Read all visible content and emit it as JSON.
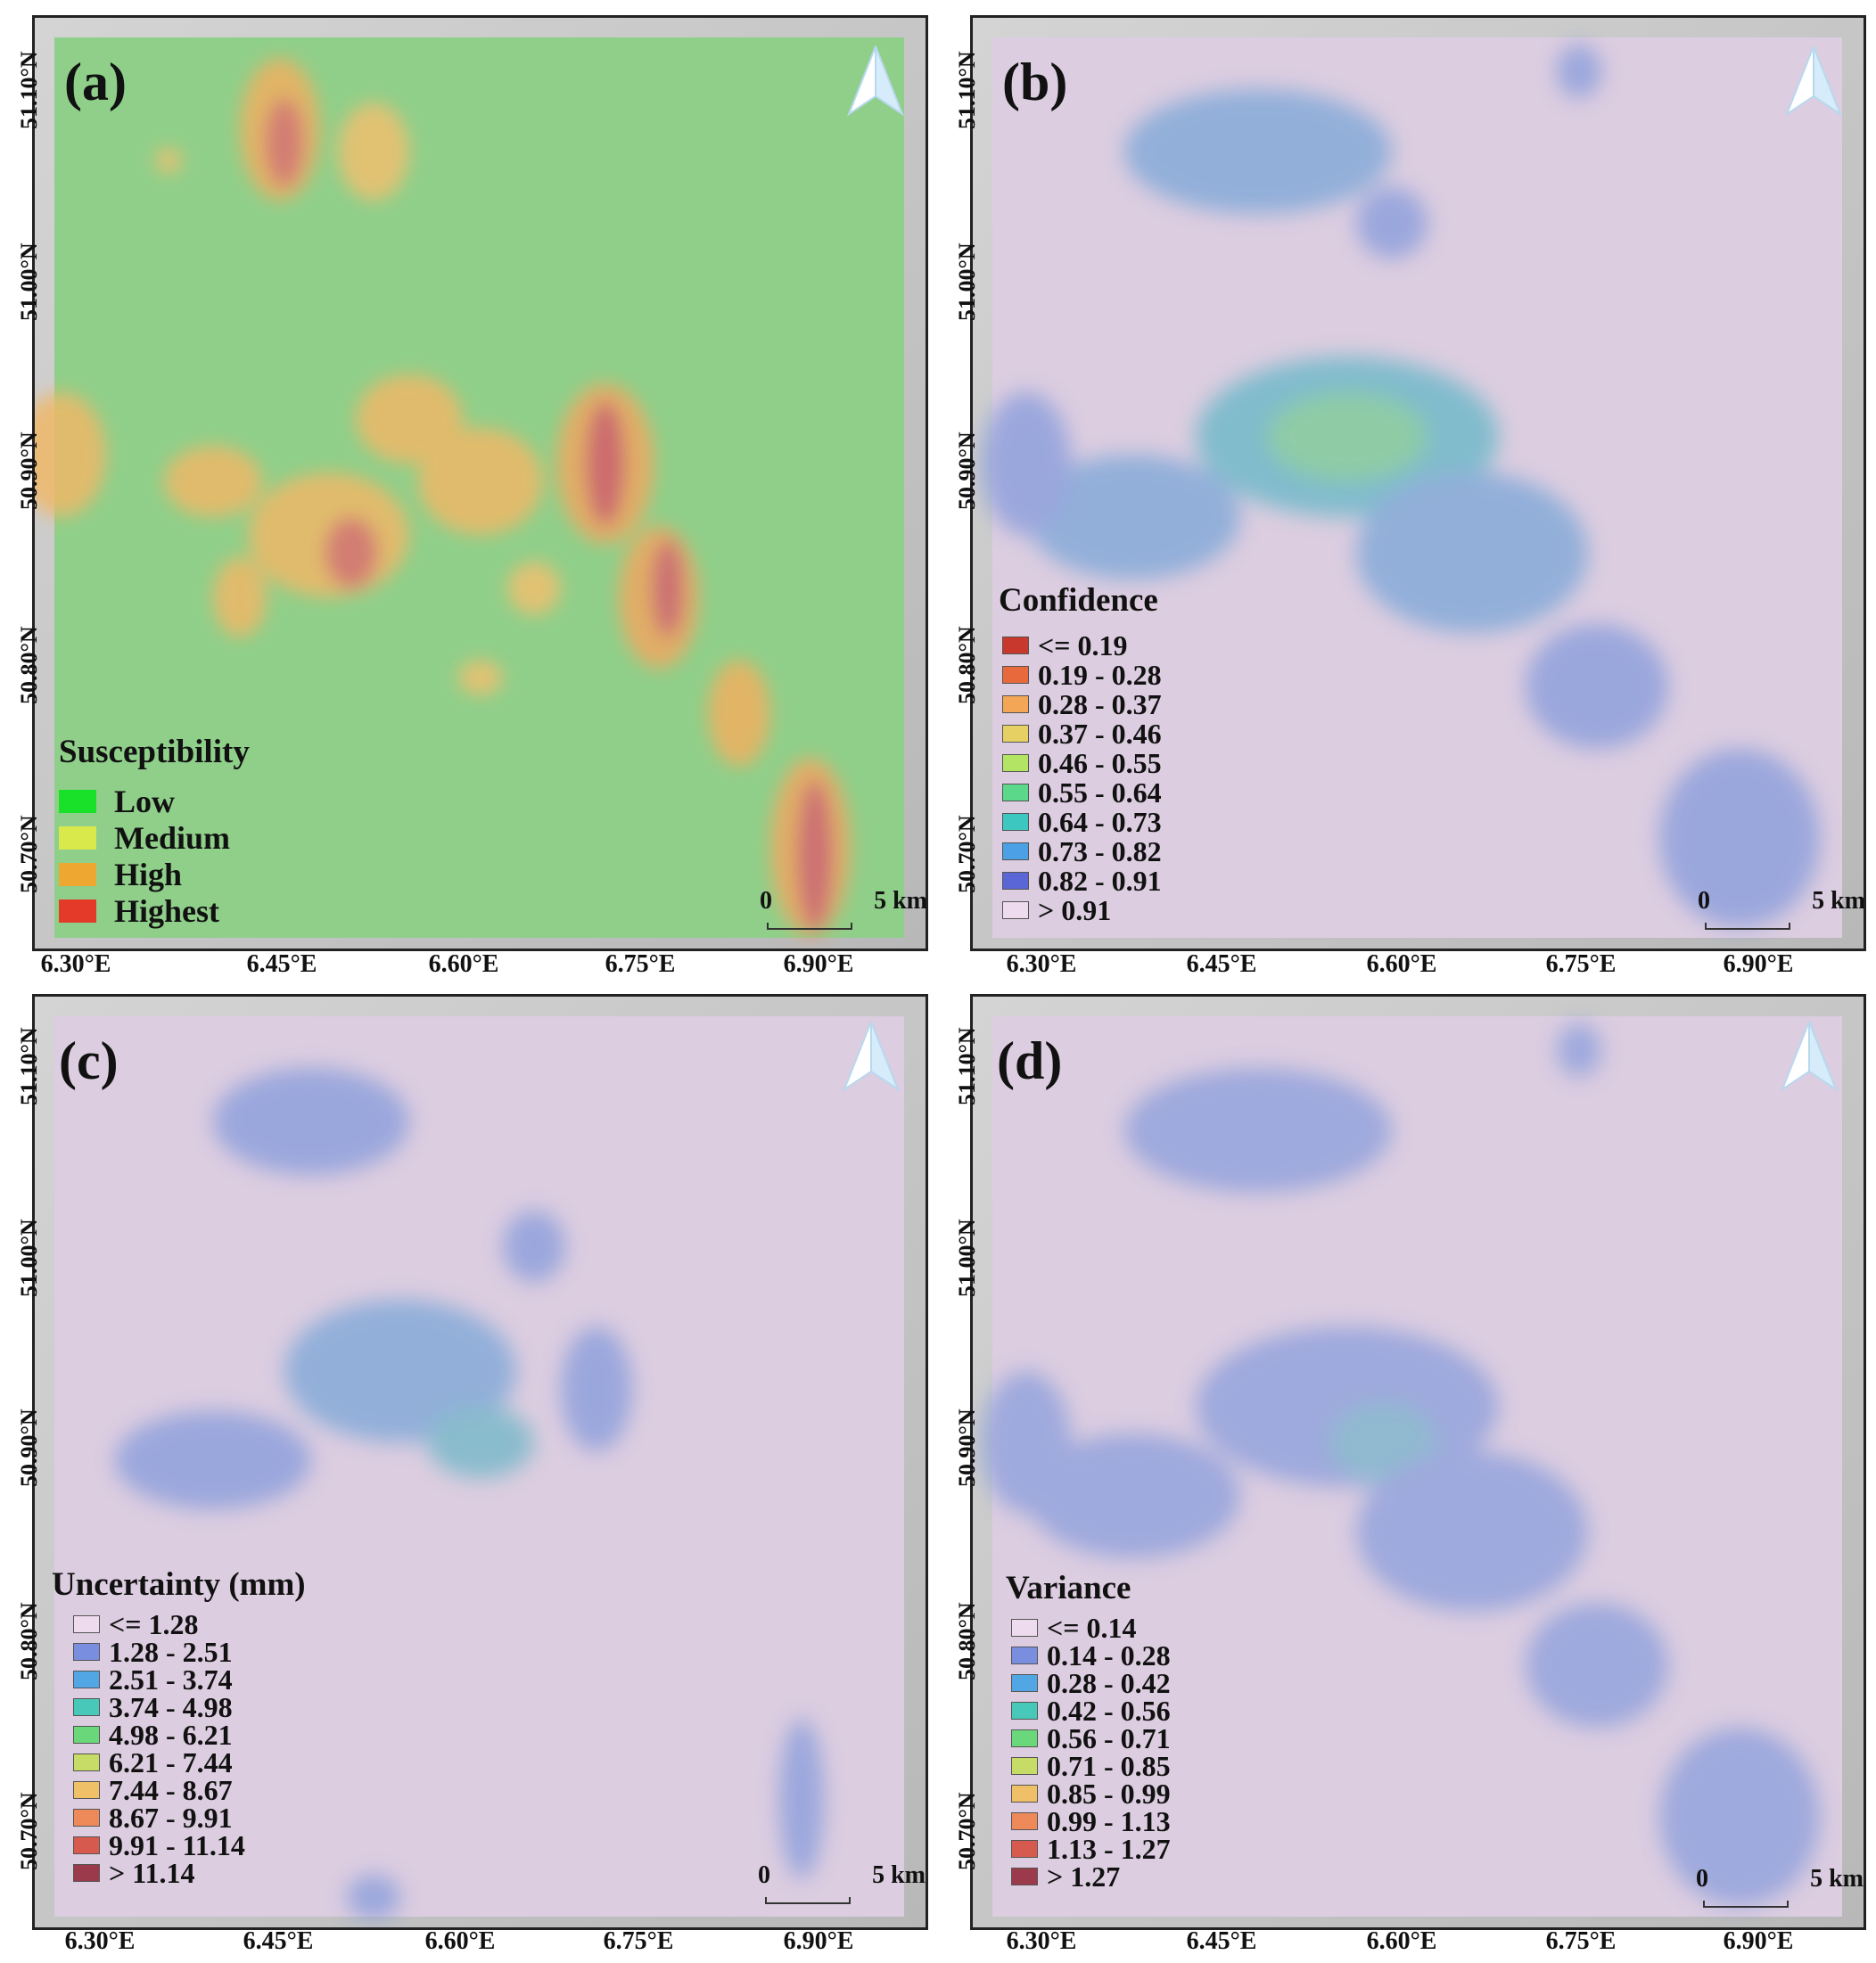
{
  "panels": [
    {
      "id": "a",
      "letter": "(a)",
      "legend": {
        "title": "Susceptibility",
        "items": [
          {
            "label": "Low",
            "color": "#19e028"
          },
          {
            "label": "Medium",
            "color": "#d9e84a"
          },
          {
            "label": "High",
            "color": "#eea832"
          },
          {
            "label": "Highest",
            "color": "#e43a2a"
          }
        ]
      }
    },
    {
      "id": "b",
      "letter": "(b)",
      "legend": {
        "title": "Confidence",
        "items": [
          {
            "label": "<= 0.19",
            "color": "#c8382c"
          },
          {
            "label": "0.19 - 0.28",
            "color": "#e86a3c"
          },
          {
            "label": "0.28 - 0.37",
            "color": "#f2a656"
          },
          {
            "label": "0.37 - 0.46",
            "color": "#e6d064"
          },
          {
            "label": "0.46 - 0.55",
            "color": "#b4e464"
          },
          {
            "label": "0.55 - 0.64",
            "color": "#5cd88a"
          },
          {
            "label": "0.64 - 0.73",
            "color": "#3cc8c0"
          },
          {
            "label": "0.73 - 0.82",
            "color": "#4ca0e6"
          },
          {
            "label": "0.82 - 0.91",
            "color": "#5a66d6"
          },
          {
            "label": "> 0.91",
            "color": "#eedcee"
          }
        ]
      }
    },
    {
      "id": "c",
      "letter": "(c)",
      "legend": {
        "title": "Uncertainty (mm)",
        "items": [
          {
            "label": "<= 1.28",
            "color": "#eedcee"
          },
          {
            "label": "1.28 - 2.51",
            "color": "#7a8ee0"
          },
          {
            "label": "2.51 - 3.74",
            "color": "#52a6e4"
          },
          {
            "label": "3.74 - 4.98",
            "color": "#48c8b8"
          },
          {
            "label": "4.98 - 6.21",
            "color": "#6ad87a"
          },
          {
            "label": "6.21 - 7.44",
            "color": "#c6dc66"
          },
          {
            "label": "7.44 - 8.67",
            "color": "#f0c068"
          },
          {
            "label": "8.67 - 9.91",
            "color": "#ee8a5a"
          },
          {
            "label": "9.91 - 11.14",
            "color": "#d65a4e"
          },
          {
            "label": "> 11.14",
            "color": "#9a3a4a"
          }
        ]
      }
    },
    {
      "id": "d",
      "letter": "(d)",
      "legend": {
        "title": "Variance",
        "items": [
          {
            "label": "<= 0.14",
            "color": "#eedcee"
          },
          {
            "label": "0.14 - 0.28",
            "color": "#7a8ee0"
          },
          {
            "label": "0.28 - 0.42",
            "color": "#52a6e4"
          },
          {
            "label": "0.42 - 0.56",
            "color": "#48c8b8"
          },
          {
            "label": "0.56 - 0.71",
            "color": "#6ad87a"
          },
          {
            "label": "0.71 - 0.85",
            "color": "#c6dc66"
          },
          {
            "label": "0.85 - 0.99",
            "color": "#f0c068"
          },
          {
            "label": "0.99 - 1.13",
            "color": "#ee8a5a"
          },
          {
            "label": "1.13 - 1.27",
            "color": "#d65a4e"
          },
          {
            "label": "> 1.27",
            "color": "#9a3a4a"
          }
        ]
      }
    }
  ],
  "latitude_labels": [
    "51.10°N",
    "51.00°N",
    "50.90°N",
    "50.80°N",
    "50.70°N"
  ],
  "longitude_labels": [
    "6.30°E",
    "6.45°E",
    "6.60°E",
    "6.75°E",
    "6.90°E"
  ],
  "scale": {
    "zero": "0",
    "distance": "5 km"
  },
  "colors": {
    "susceptibility_base": "#8fcf8a",
    "overlay_base": "#dccde0",
    "frame": "#222222",
    "hillshade_margin": "#c8c8c8"
  }
}
